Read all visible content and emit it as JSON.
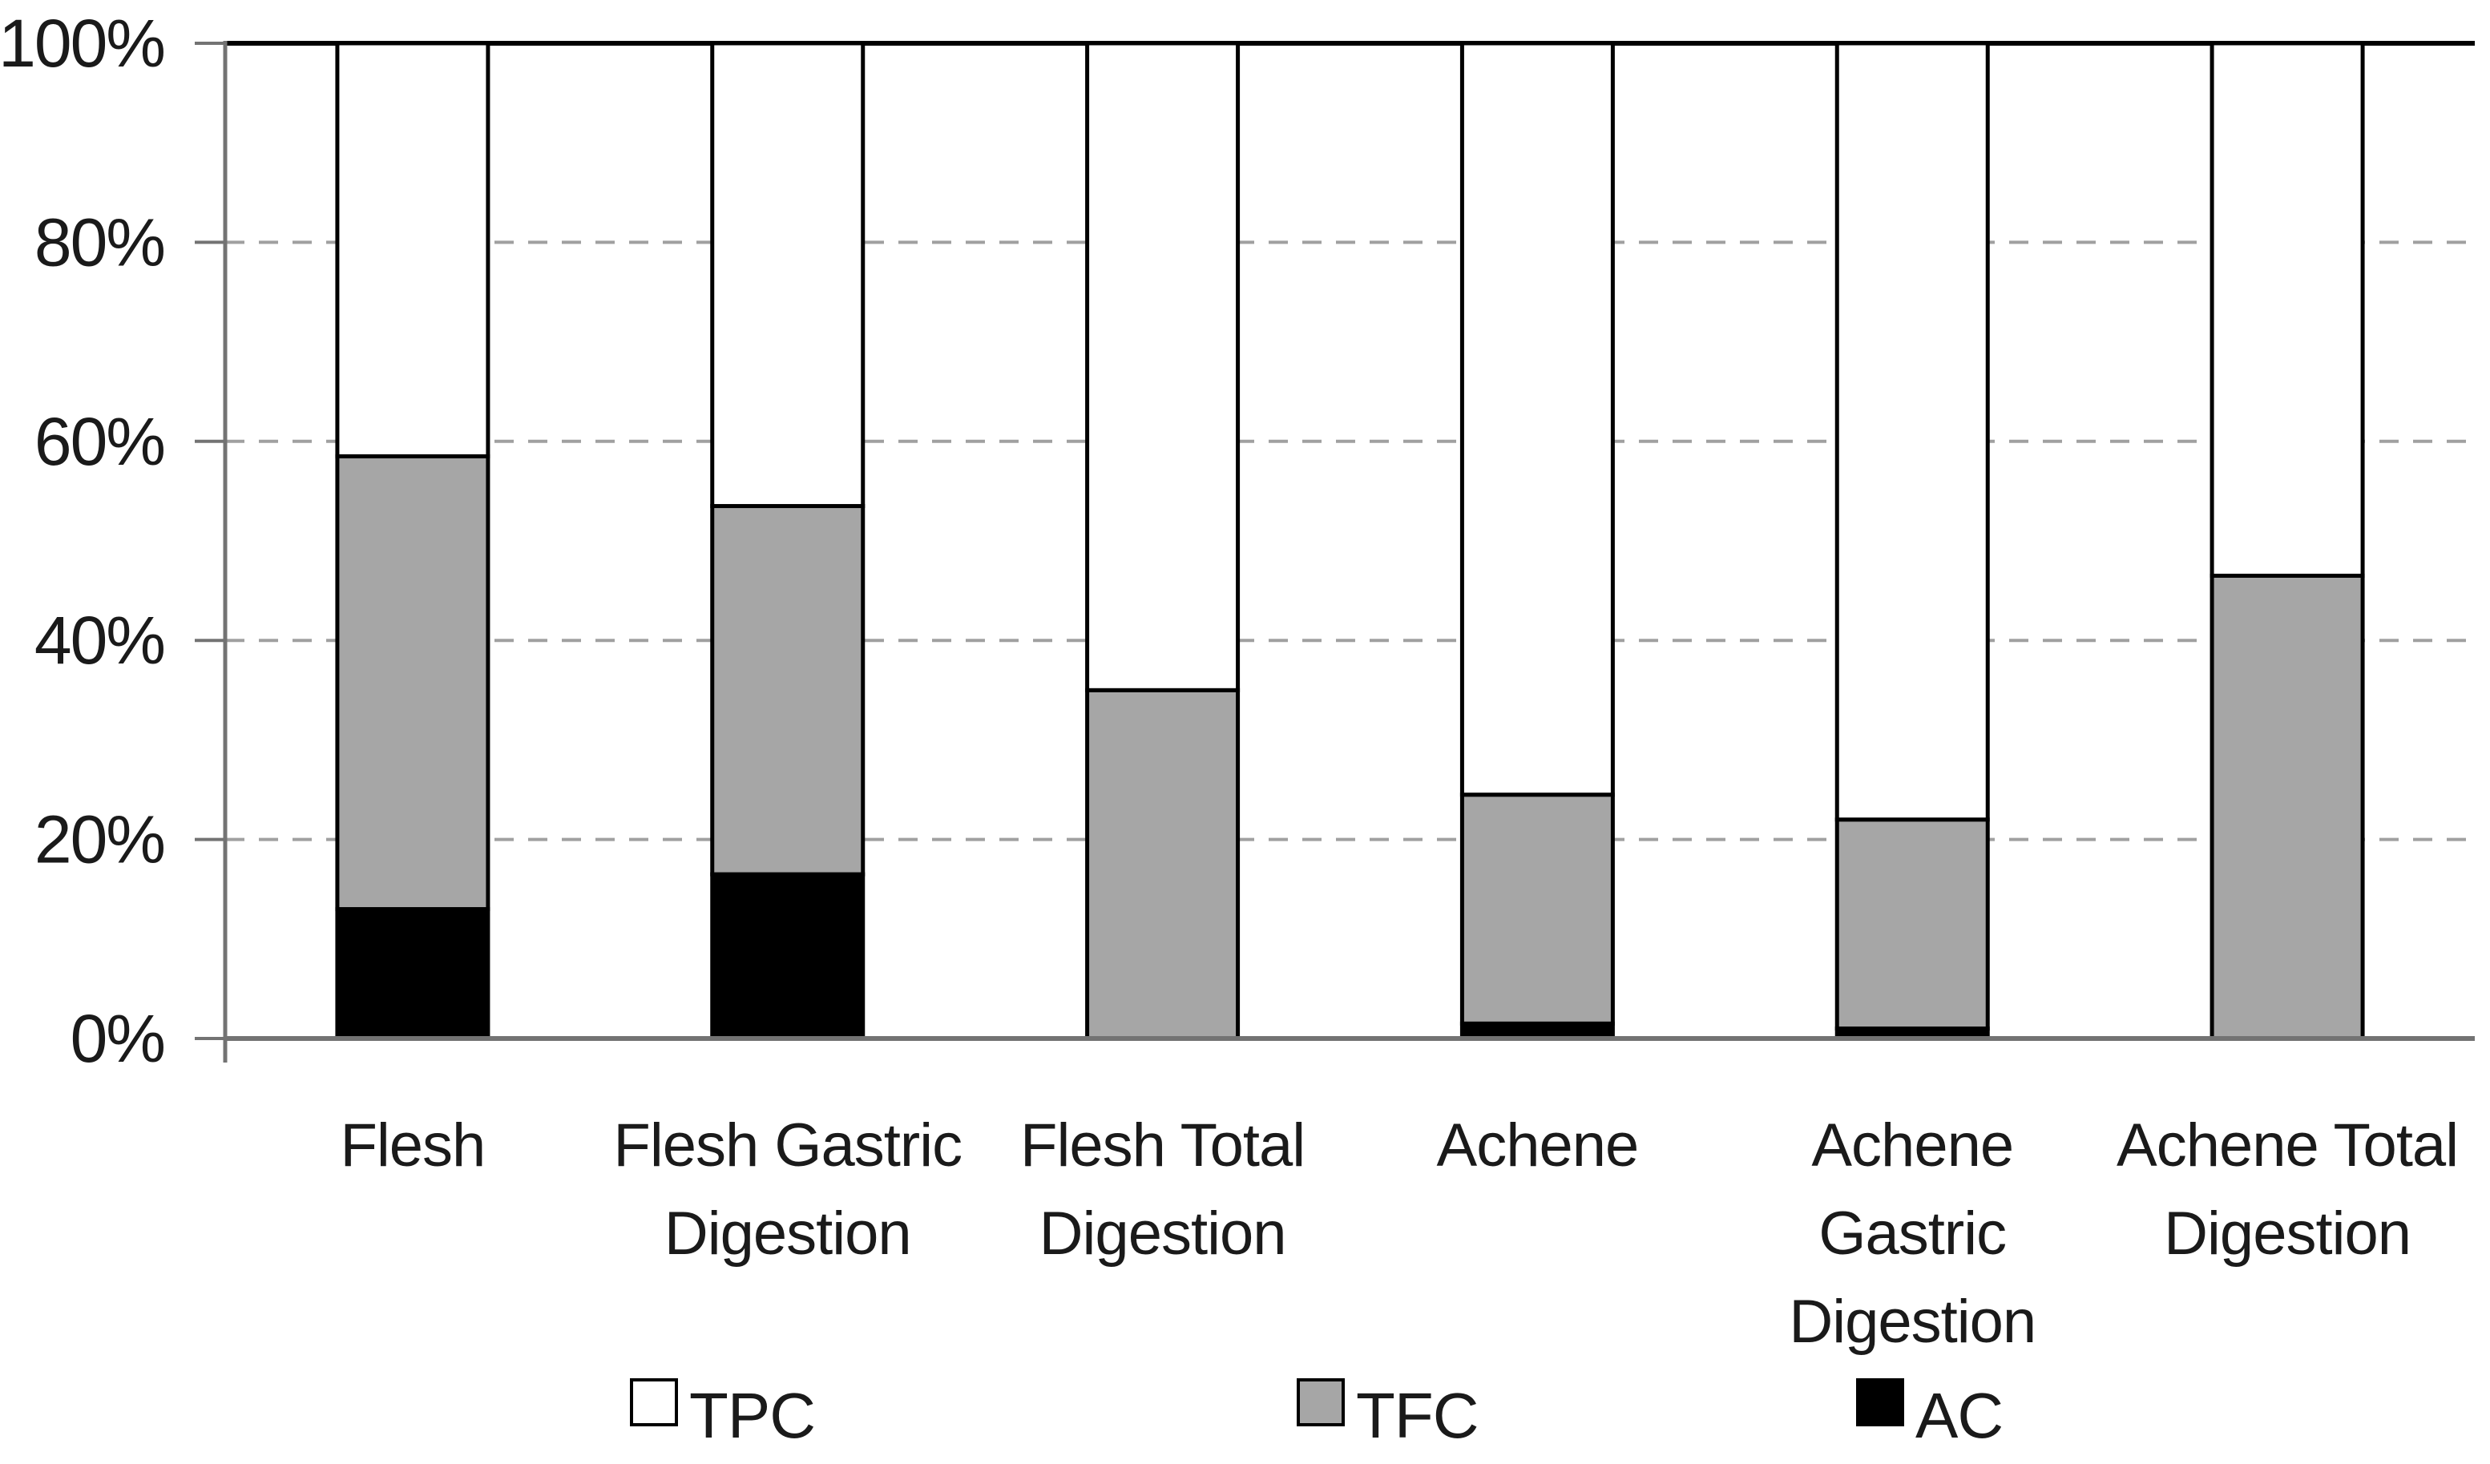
{
  "chart_data": {
    "type": "bar",
    "subtype": "stacked-100-percent-column",
    "categories": [
      "Flesh",
      "Flesh Gastric Digestion",
      "Flesh Total Digestion",
      "Achene",
      "Achene Gastric Digestion",
      "Achene Total Digestion"
    ],
    "category_label_lines": [
      [
        "Flesh"
      ],
      [
        "Flesh Gastric",
        "Digestion"
      ],
      [
        "Flesh Total",
        "Digestion"
      ],
      [
        "Achene"
      ],
      [
        "Achene",
        "Gastric",
        "Digestion"
      ],
      [
        "Achene Total",
        "Digestion"
      ]
    ],
    "series": [
      {
        "name": "TPC",
        "color": "#ffffff",
        "values": [
          41.5,
          46.5,
          65.0,
          75.5,
          78.0,
          53.5
        ]
      },
      {
        "name": "TFC",
        "color": "#a6a6a6",
        "values": [
          45.5,
          37.0,
          35.0,
          23.0,
          21.0,
          46.5
        ]
      },
      {
        "name": "AC",
        "color": "#000000",
        "values": [
          13.0,
          16.5,
          0.0,
          1.5,
          1.0,
          0.0
        ]
      }
    ],
    "stack_order_bottom_to_top": [
      "AC",
      "TFC",
      "TPC"
    ],
    "y_ticks": [
      "0%",
      "20%",
      "40%",
      "60%",
      "80%",
      "100%"
    ],
    "ylim": [
      0,
      100
    ],
    "y_unit": "percent",
    "grid": "horizontal dashed gridlines at 20% intervals, solid black line at 100%",
    "legend_position": "bottom",
    "title": "",
    "xlabel": "",
    "ylabel": "",
    "colors": {
      "axis": "#737373",
      "gridline": "#a0a0a0",
      "bar_outline": "#000000",
      "top_line": "#000000",
      "background": "#ffffff",
      "text": "#1a1a1a"
    }
  }
}
